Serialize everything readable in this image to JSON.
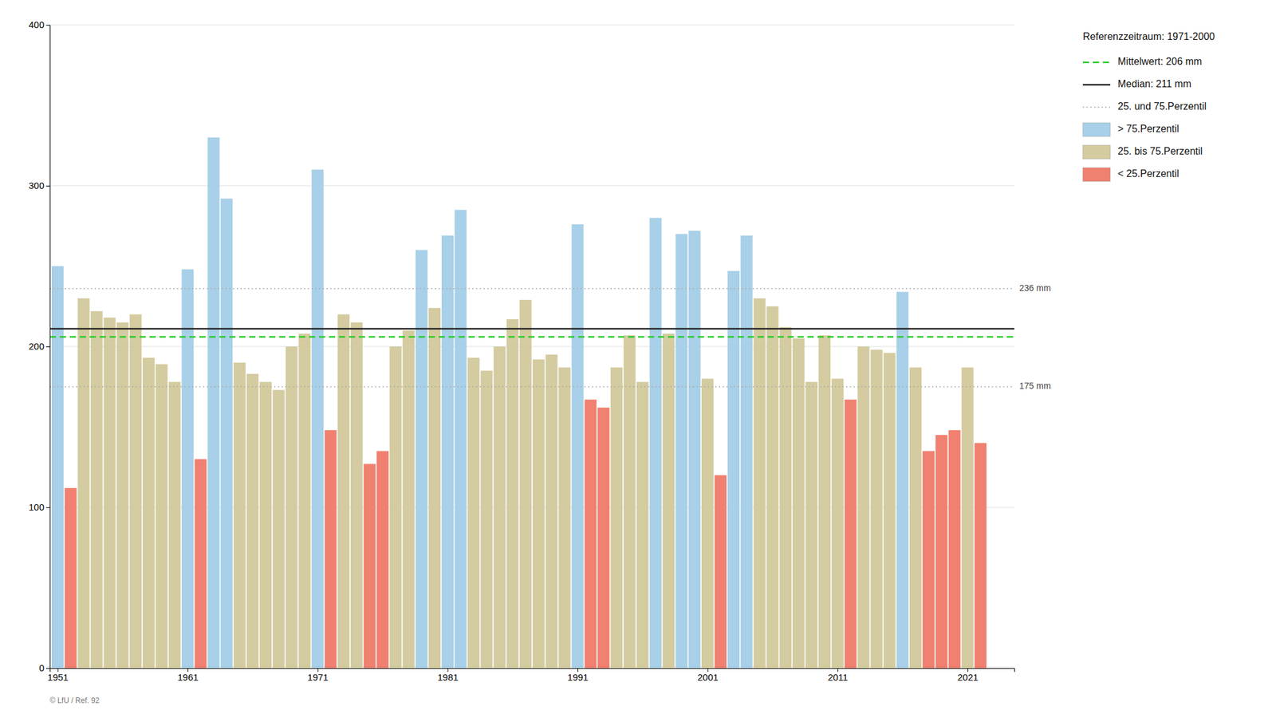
{
  "chart_data": {
    "type": "bar",
    "x": [
      1951,
      1952,
      1953,
      1954,
      1955,
      1956,
      1957,
      1958,
      1959,
      1960,
      1961,
      1962,
      1963,
      1964,
      1965,
      1966,
      1967,
      1968,
      1969,
      1970,
      1971,
      1972,
      1973,
      1974,
      1975,
      1976,
      1977,
      1978,
      1979,
      1980,
      1981,
      1982,
      1983,
      1984,
      1985,
      1986,
      1987,
      1988,
      1989,
      1990,
      1991,
      1992,
      1993,
      1994,
      1995,
      1996,
      1997,
      1998,
      1999,
      2000,
      2001,
      2002,
      2003,
      2004,
      2005,
      2006,
      2007,
      2008,
      2009,
      2010,
      2011,
      2012,
      2013,
      2014,
      2015,
      2016,
      2017,
      2018,
      2019,
      2020,
      2021,
      2022
    ],
    "values": [
      250,
      112,
      230,
      222,
      218,
      215,
      220,
      193,
      189,
      178,
      248,
      130,
      330,
      292,
      190,
      183,
      178,
      173,
      200,
      208,
      310,
      148,
      220,
      215,
      127,
      135,
      200,
      210,
      260,
      224,
      269,
      285,
      193,
      185,
      200,
      217,
      229,
      192,
      195,
      187,
      276,
      167,
      162,
      187,
      207,
      178,
      280,
      208,
      270,
      272,
      180,
      120,
      247,
      269,
      230,
      225,
      212,
      205,
      178,
      207,
      180,
      167,
      200,
      198,
      196,
      234,
      187,
      135,
      145,
      148,
      187,
      140
    ],
    "colors": [
      "#a8d0e8",
      "#f08070",
      "#d4cca0",
      "#d4cca0",
      "#d4cca0",
      "#d4cca0",
      "#d4cca0",
      "#d4cca0",
      "#d4cca0",
      "#d4cca0",
      "#a8d0e8",
      "#f08070",
      "#a8d0e8",
      "#a8d0e8",
      "#d4cca0",
      "#d4cca0",
      "#d4cca0",
      "#d4cca0",
      "#d4cca0",
      "#d4cca0",
      "#a8d0e8",
      "#f08070",
      "#d4cca0",
      "#d4cca0",
      "#f08070",
      "#f08070",
      "#d4cca0",
      "#d4cca0",
      "#a8d0e8",
      "#d4cca0",
      "#a8d0e8",
      "#a8d0e8",
      "#d4cca0",
      "#d4cca0",
      "#d4cca0",
      "#d4cca0",
      "#d4cca0",
      "#d4cca0",
      "#d4cca0",
      "#d4cca0",
      "#a8d0e8",
      "#f08070",
      "#f08070",
      "#d4cca0",
      "#d4cca0",
      "#d4cca0",
      "#a8d0e8",
      "#d4cca0",
      "#a8d0e8",
      "#a8d0e8",
      "#d4cca0",
      "#f08070",
      "#a8d0e8",
      "#a8d0e8",
      "#d4cca0",
      "#d4cca0",
      "#d4cca0",
      "#d4cca0",
      "#d4cca0",
      "#d4cca0",
      "#d4cca0",
      "#f08070",
      "#d4cca0",
      "#d4cca0",
      "#d4cca0",
      "#a8d0e8",
      "#d4cca0",
      "#f08070",
      "#f08070",
      "#f08070",
      "#d4cca0",
      "#f08070"
    ],
    "xlim": [
      1950.4,
      2024.6
    ],
    "xticks": [
      1951,
      1961,
      1971,
      1981,
      1991,
      2001,
      2011,
      2021
    ],
    "ylim": [
      0,
      400
    ],
    "yticks": [
      0,
      100,
      200,
      300,
      400
    ],
    "grid": true,
    "reference_lines": [
      {
        "value": 236,
        "color": "#aaaaaa",
        "line_style": "dotted",
        "label": "236 mm"
      },
      {
        "value": 175,
        "color": "#aaaaaa",
        "line_style": "dotted",
        "label": "175 mm"
      },
      {
        "value": 211,
        "color": "#222222",
        "line_style": "solid"
      },
      {
        "value": 206,
        "color": "#22cc22",
        "line_style": "dashed"
      }
    ],
    "legend": "right",
    "legend_title": "Referenzzeitraum: 1971-2000",
    "legend_entries": [
      {
        "label": "Mittelwert:  206 mm",
        "color": "#22cc22",
        "line_style": "dashed"
      },
      {
        "label": "Median:  211 mm",
        "color": "#222222",
        "line_style": "solid"
      },
      {
        "label": "25. und 75.Perzentil",
        "color": "#aaaaaa",
        "line_style": "dotted"
      },
      {
        "label": "> 75.Perzentil",
        "color": "#a8d0e8",
        "marker": "square"
      },
      {
        "label": "25. bis 75.Perzentil",
        "color": "#d4cca0",
        "marker": "square"
      },
      {
        "label": "< 25.Perzentil",
        "color": "#f08070",
        "marker": "square"
      }
    ],
    "watermark": "© LfU / Ref. 92"
  }
}
